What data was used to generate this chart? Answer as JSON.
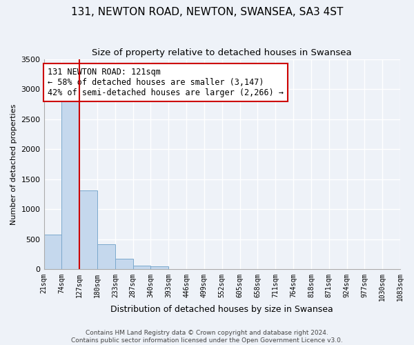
{
  "title": "131, NEWTON ROAD, NEWTON, SWANSEA, SA3 4ST",
  "subtitle": "Size of property relative to detached houses in Swansea",
  "xlabel": "Distribution of detached houses by size in Swansea",
  "ylabel": "Number of detached properties",
  "bin_labels": [
    "21sqm",
    "74sqm",
    "127sqm",
    "180sqm",
    "233sqm",
    "287sqm",
    "340sqm",
    "393sqm",
    "446sqm",
    "499sqm",
    "552sqm",
    "605sqm",
    "658sqm",
    "711sqm",
    "764sqm",
    "818sqm",
    "871sqm",
    "924sqm",
    "977sqm",
    "1030sqm",
    "1083sqm"
  ],
  "bar_heights": [
    580,
    2900,
    1310,
    420,
    175,
    65,
    50,
    0,
    0,
    0,
    0,
    0,
    0,
    0,
    0,
    0,
    0,
    0,
    0,
    0
  ],
  "bar_color": "#c5d8ed",
  "bar_edge_color": "#7aa8cc",
  "property_line_x": 2,
  "vline_color": "#cc0000",
  "annotation_title": "131 NEWTON ROAD: 121sqm",
  "annotation_line1": "← 58% of detached houses are smaller (3,147)",
  "annotation_line2": "42% of semi-detached houses are larger (2,266) →",
  "annotation_box_color": "#ffffff",
  "annotation_box_edge": "#cc0000",
  "ylim": [
    0,
    3500
  ],
  "yticks": [
    0,
    500,
    1000,
    1500,
    2000,
    2500,
    3000,
    3500
  ],
  "footer_line1": "Contains HM Land Registry data © Crown copyright and database right 2024.",
  "footer_line2": "Contains public sector information licensed under the Open Government Licence v3.0.",
  "background_color": "#eef2f8",
  "plot_background": "#eef2f8",
  "grid_color": "#ffffff",
  "title_fontsize": 11,
  "subtitle_fontsize": 9.5
}
